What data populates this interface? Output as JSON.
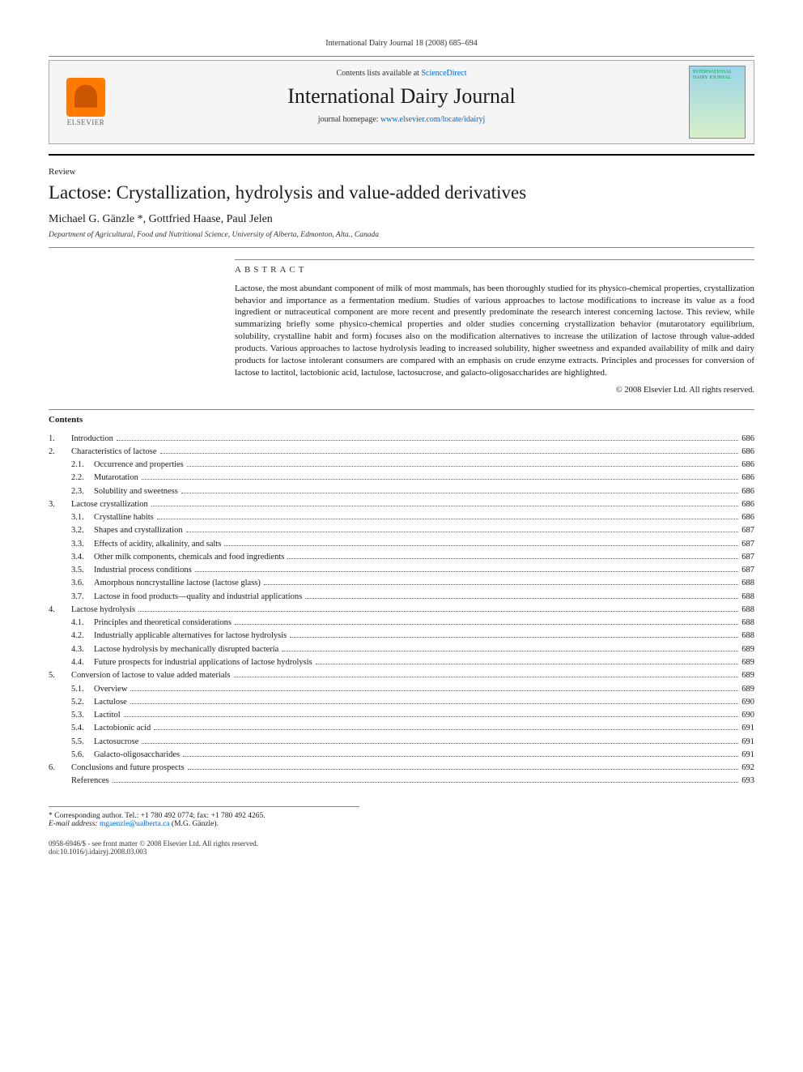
{
  "header_pagination": "International Dairy Journal 18 (2008) 685–694",
  "banner": {
    "contents_prefix": "Contents lists available at ",
    "contents_link": "ScienceDirect",
    "journal_name": "International Dairy Journal",
    "homepage_prefix": "journal homepage: ",
    "homepage_link": "www.elsevier.com/locate/idairyj",
    "elsevier_label": "ELSEVIER",
    "cover_text": "INTERNATIONAL DAIRY JOURNAL"
  },
  "article": {
    "type": "Review",
    "title": "Lactose: Crystallization, hydrolysis and value-added derivatives",
    "authors": "Michael G. Gänzle *, Gottfried Haase, Paul Jelen",
    "affiliation": "Department of Agricultural, Food and Nutritional Science, University of Alberta, Edmonton, Alta., Canada"
  },
  "abstract": {
    "heading": "ABSTRACT",
    "text": "Lactose, the most abundant component of milk of most mammals, has been thoroughly studied for its physico-chemical properties, crystallization behavior and importance as a fermentation medium. Studies of various approaches to lactose modifications to increase its value as a food ingredient or nutraceutical component are more recent and presently predominate the research interest concerning lactose. This review, while summarizing briefly some physico-chemical properties and older studies concerning crystallization behavior (mutarotatory equilibrium, solubility, crystalline habit and form) focuses also on the modification alternatives to increase the utilization of lactose through value-added products. Various approaches to lactose hydrolysis leading to increased solubility, higher sweetness and expanded availability of milk and dairy products for lactose intolerant consumers are compared with an emphasis on crude enzyme extracts. Principles and processes for conversion of lactose to lactitol, lactobionic acid, lactulose, lactosucrose, and galacto-oligosaccharides are highlighted.",
    "copyright": "© 2008 Elsevier Ltd. All rights reserved."
  },
  "contents_heading": "Contents",
  "toc": [
    {
      "num": "1.",
      "title": "Introduction",
      "page": "686",
      "sub": []
    },
    {
      "num": "2.",
      "title": "Characteristics of lactose",
      "page": "686",
      "sub": [
        {
          "num": "2.1.",
          "title": "Occurrence and properties",
          "page": "686"
        },
        {
          "num": "2.2.",
          "title": "Mutarotation",
          "page": "686"
        },
        {
          "num": "2.3.",
          "title": "Solubility and sweetness",
          "page": "686"
        }
      ]
    },
    {
      "num": "3.",
      "title": "Lactose crystallization",
      "page": "686",
      "sub": [
        {
          "num": "3.1.",
          "title": "Crystalline habits",
          "page": "686"
        },
        {
          "num": "3.2.",
          "title": "Shapes and crystallization",
          "page": "687"
        },
        {
          "num": "3.3.",
          "title": "Effects of acidity, alkalinity, and salts",
          "page": "687"
        },
        {
          "num": "3.4.",
          "title": "Other milk components, chemicals and food ingredients",
          "page": "687"
        },
        {
          "num": "3.5.",
          "title": "Industrial process conditions",
          "page": "687"
        },
        {
          "num": "3.6.",
          "title": "Amorphous noncrystalline lactose (lactose glass)",
          "page": "688"
        },
        {
          "num": "3.7.",
          "title": "Lactose in food products—quality and industrial applications",
          "page": "688"
        }
      ]
    },
    {
      "num": "4.",
      "title": "Lactose hydrolysis",
      "page": "688",
      "sub": [
        {
          "num": "4.1.",
          "title": "Principles and theoretical considerations",
          "page": "688"
        },
        {
          "num": "4.2.",
          "title": "Industrially applicable alternatives for lactose hydrolysis",
          "page": "688"
        },
        {
          "num": "4.3.",
          "title": "Lactose hydrolysis by mechanically disrupted bacteria",
          "page": "689"
        },
        {
          "num": "4.4.",
          "title": "Future prospects for industrial applications of lactose hydrolysis",
          "page": "689"
        }
      ]
    },
    {
      "num": "5.",
      "title": "Conversion of lactose to value added materials",
      "page": "689",
      "sub": [
        {
          "num": "5.1.",
          "title": "Overview",
          "page": "689"
        },
        {
          "num": "5.2.",
          "title": "Lactulose",
          "page": "690"
        },
        {
          "num": "5.3.",
          "title": "Lactitol",
          "page": "690"
        },
        {
          "num": "5.4.",
          "title": "Lactobionic acid",
          "page": "691"
        },
        {
          "num": "5.5.",
          "title": "Lactosucrose",
          "page": "691"
        },
        {
          "num": "5.6.",
          "title": "Galacto-oligosaccharides",
          "page": "691"
        }
      ]
    },
    {
      "num": "6.",
      "title": "Conclusions and future prospects",
      "page": "692",
      "sub": []
    },
    {
      "num": "",
      "title": "References",
      "page": "693",
      "sub": []
    }
  ],
  "footnotes": {
    "corr_line": "* Corresponding author. Tel.: +1 780 492 0774; fax: +1 780 492 4265.",
    "email_label": "E-mail address: ",
    "email": "mgaenzle@ualberta.ca",
    "email_suffix": " (M.G. Gänzle)."
  },
  "footer": {
    "issn_line": "0958-6946/$ - see front matter © 2008 Elsevier Ltd. All rights reserved.",
    "doi_line": "doi:10.1016/j.idairyj.2008.03.003"
  },
  "colors": {
    "link": "#0066cc",
    "text": "#1a1a1a",
    "rule": "#888888",
    "banner_bg": "#f5f5f5",
    "elsevier_orange": "#ff7a00"
  }
}
